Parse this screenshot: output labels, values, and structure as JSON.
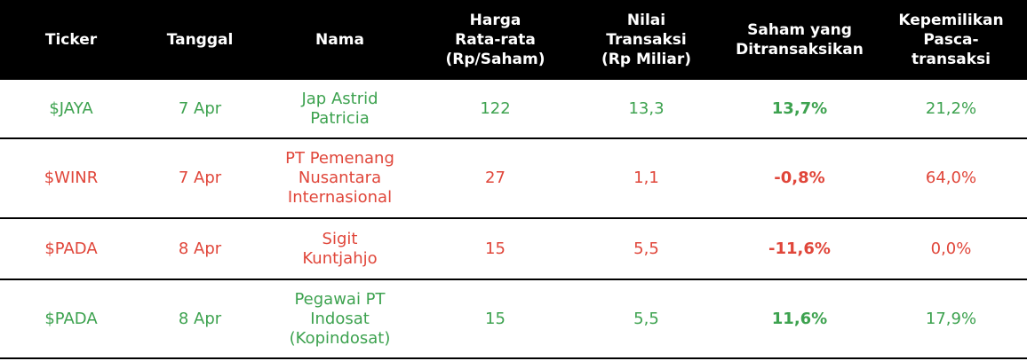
{
  "table": {
    "header": [
      "Ticker",
      "Tanggal",
      "Nama",
      "Harga\nRata-rata\n(Rp/Saham)",
      "Nilai\nTransaksi\n(Rp Miliar)",
      "Saham yang\nDitransaksikan",
      "Kepemilikan\nPasca-\ntransaksi"
    ],
    "rows": [
      [
        "$JAYA",
        "7 Apr",
        "Jap Astrid\nPatricia",
        "122",
        "13,3",
        "13,7%",
        "21,2%"
      ],
      [
        "$WINR",
        "7 Apr",
        "PT Pemenang\nNusantara\nInternasional",
        "27",
        "1,1",
        "-0,8%",
        "64,0%"
      ],
      [
        "$PADA",
        "8 Apr",
        "Sigit\nKuntjahjo",
        "15",
        "5,5",
        "-11,6%",
        "0,0%"
      ],
      [
        "$PADA",
        "8 Apr",
        "Pegawai PT\nIndosat\n(Kopindosat)",
        "15",
        "5,5",
        "11,6%",
        "17,9%"
      ]
    ],
    "row_colors": [
      "#3da24f",
      "#e0463a",
      "#e0463a",
      "#3da24f"
    ],
    "change_colors": [
      "#3da24f",
      "#e0463a",
      "#e0463a",
      "#3da24f"
    ]
  }
}
